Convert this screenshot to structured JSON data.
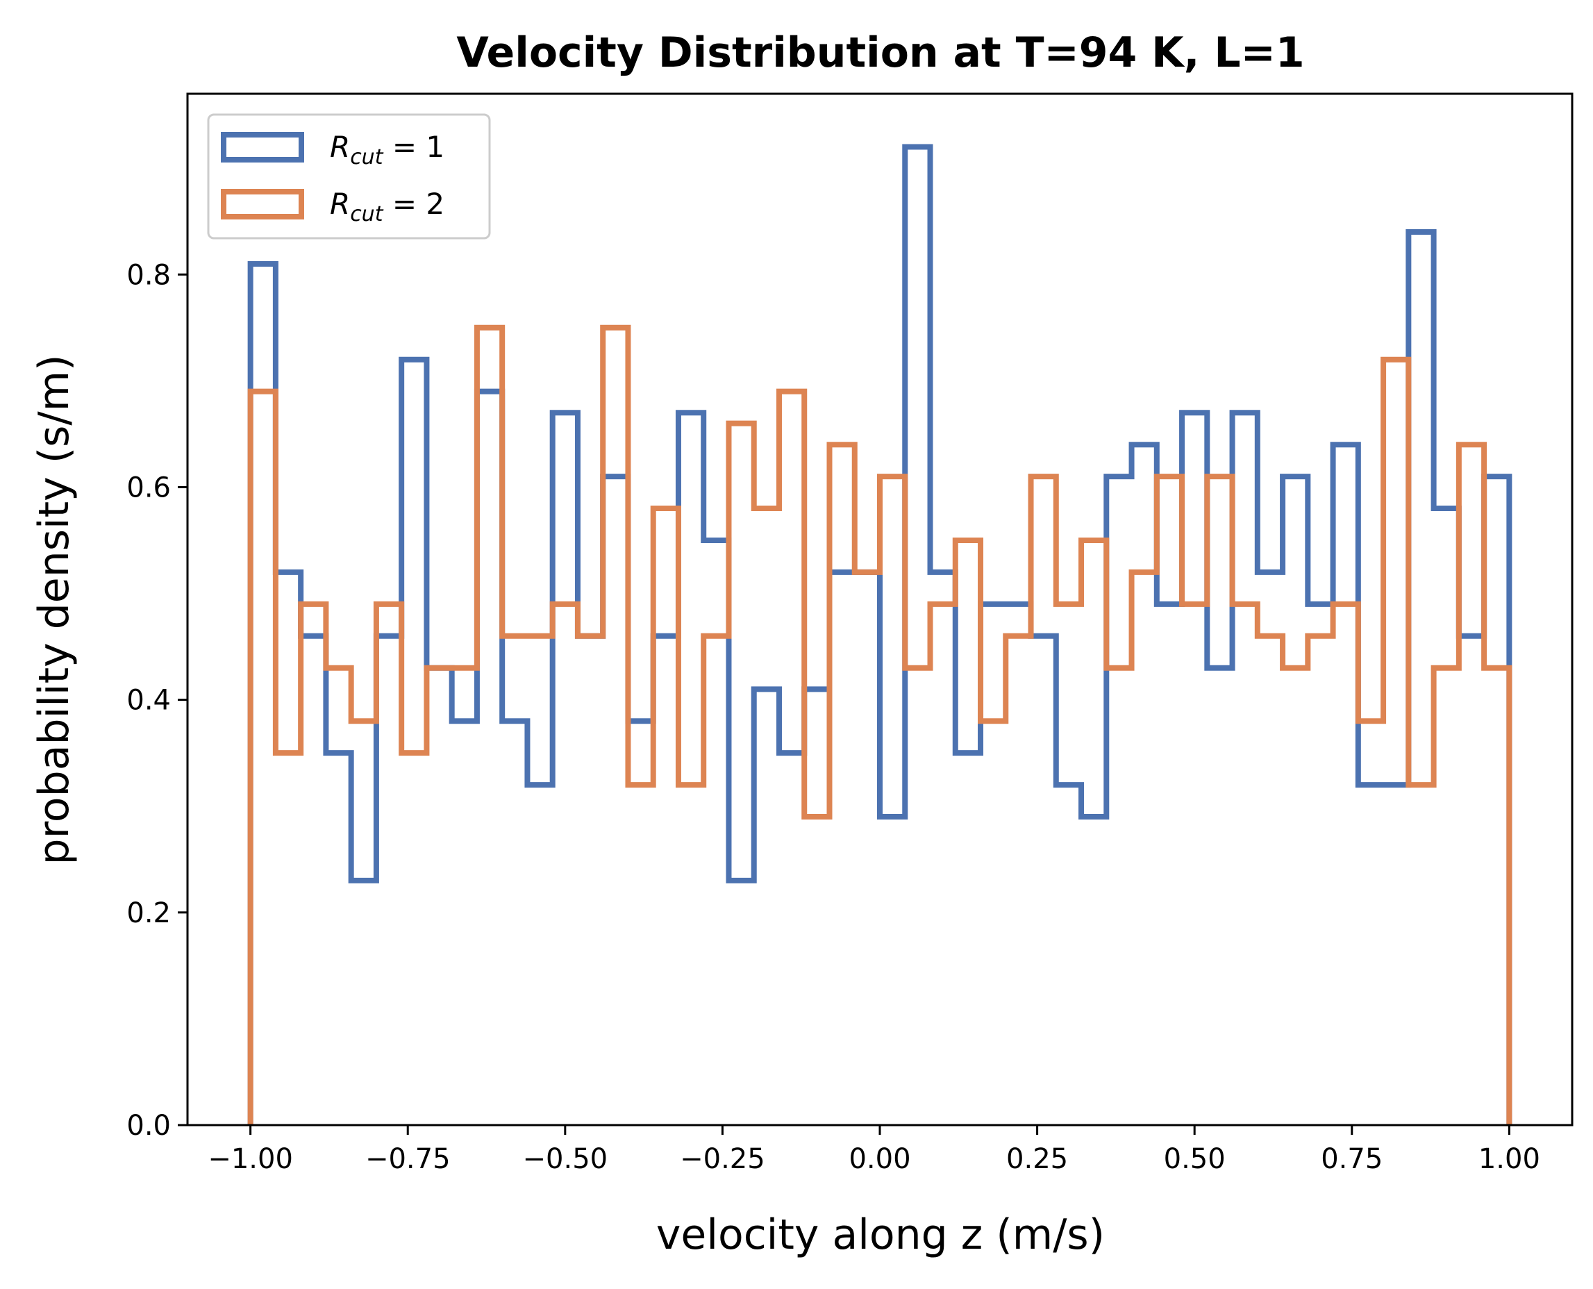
{
  "chart_data": {
    "type": "histogram-step",
    "title": "Velocity Distribution at T=94 K, L=1",
    "xlabel": "velocity along z (m/s)",
    "ylabel": "probability density (s/m)",
    "xlim": [
      -1.1,
      1.1
    ],
    "ylim": [
      0,
      0.97
    ],
    "xticks": [
      -1.0,
      -0.75,
      -0.5,
      -0.25,
      0.0,
      0.25,
      0.5,
      0.75,
      1.0
    ],
    "xtick_labels": [
      "−1.00",
      "−0.75",
      "−0.50",
      "−0.25",
      "0.00",
      "0.25",
      "0.50",
      "0.75",
      "1.00"
    ],
    "yticks": [
      0.0,
      0.2,
      0.4,
      0.6,
      0.8
    ],
    "ytick_labels": [
      "0.0",
      "0.2",
      "0.4",
      "0.6",
      "0.8"
    ],
    "legend_position": "upper-left",
    "bin_edges_range": [
      -1.0,
      1.0
    ],
    "series": [
      {
        "legend_base": "R",
        "legend_sub": "cut",
        "legend_rest": " = 1",
        "color": "#4c72b0",
        "values": [
          0.81,
          0.52,
          0.46,
          0.35,
          0.23,
          0.46,
          0.72,
          0.43,
          0.38,
          0.69,
          0.38,
          0.32,
          0.67,
          0.46,
          0.61,
          0.38,
          0.46,
          0.67,
          0.55,
          0.23,
          0.41,
          0.35,
          0.41,
          0.52,
          0.52,
          0.29,
          0.92,
          0.52,
          0.35,
          0.49,
          0.49,
          0.46,
          0.32,
          0.29,
          0.61,
          0.64,
          0.49,
          0.67,
          0.43,
          0.67,
          0.52,
          0.61,
          0.49,
          0.64,
          0.32,
          0.32,
          0.84,
          0.58,
          0.46,
          0.61
        ]
      },
      {
        "legend_base": "R",
        "legend_sub": "cut",
        "legend_rest": " = 2",
        "color": "#dd8452",
        "values": [
          0.69,
          0.35,
          0.49,
          0.43,
          0.38,
          0.49,
          0.35,
          0.43,
          0.43,
          0.75,
          0.46,
          0.46,
          0.49,
          0.46,
          0.75,
          0.32,
          0.58,
          0.32,
          0.46,
          0.66,
          0.58,
          0.69,
          0.29,
          0.64,
          0.52,
          0.61,
          0.43,
          0.49,
          0.55,
          0.38,
          0.46,
          0.61,
          0.49,
          0.55,
          0.43,
          0.52,
          0.61,
          0.49,
          0.61,
          0.49,
          0.46,
          0.43,
          0.46,
          0.49,
          0.38,
          0.72,
          0.32,
          0.43,
          0.64,
          0.43
        ]
      }
    ]
  }
}
